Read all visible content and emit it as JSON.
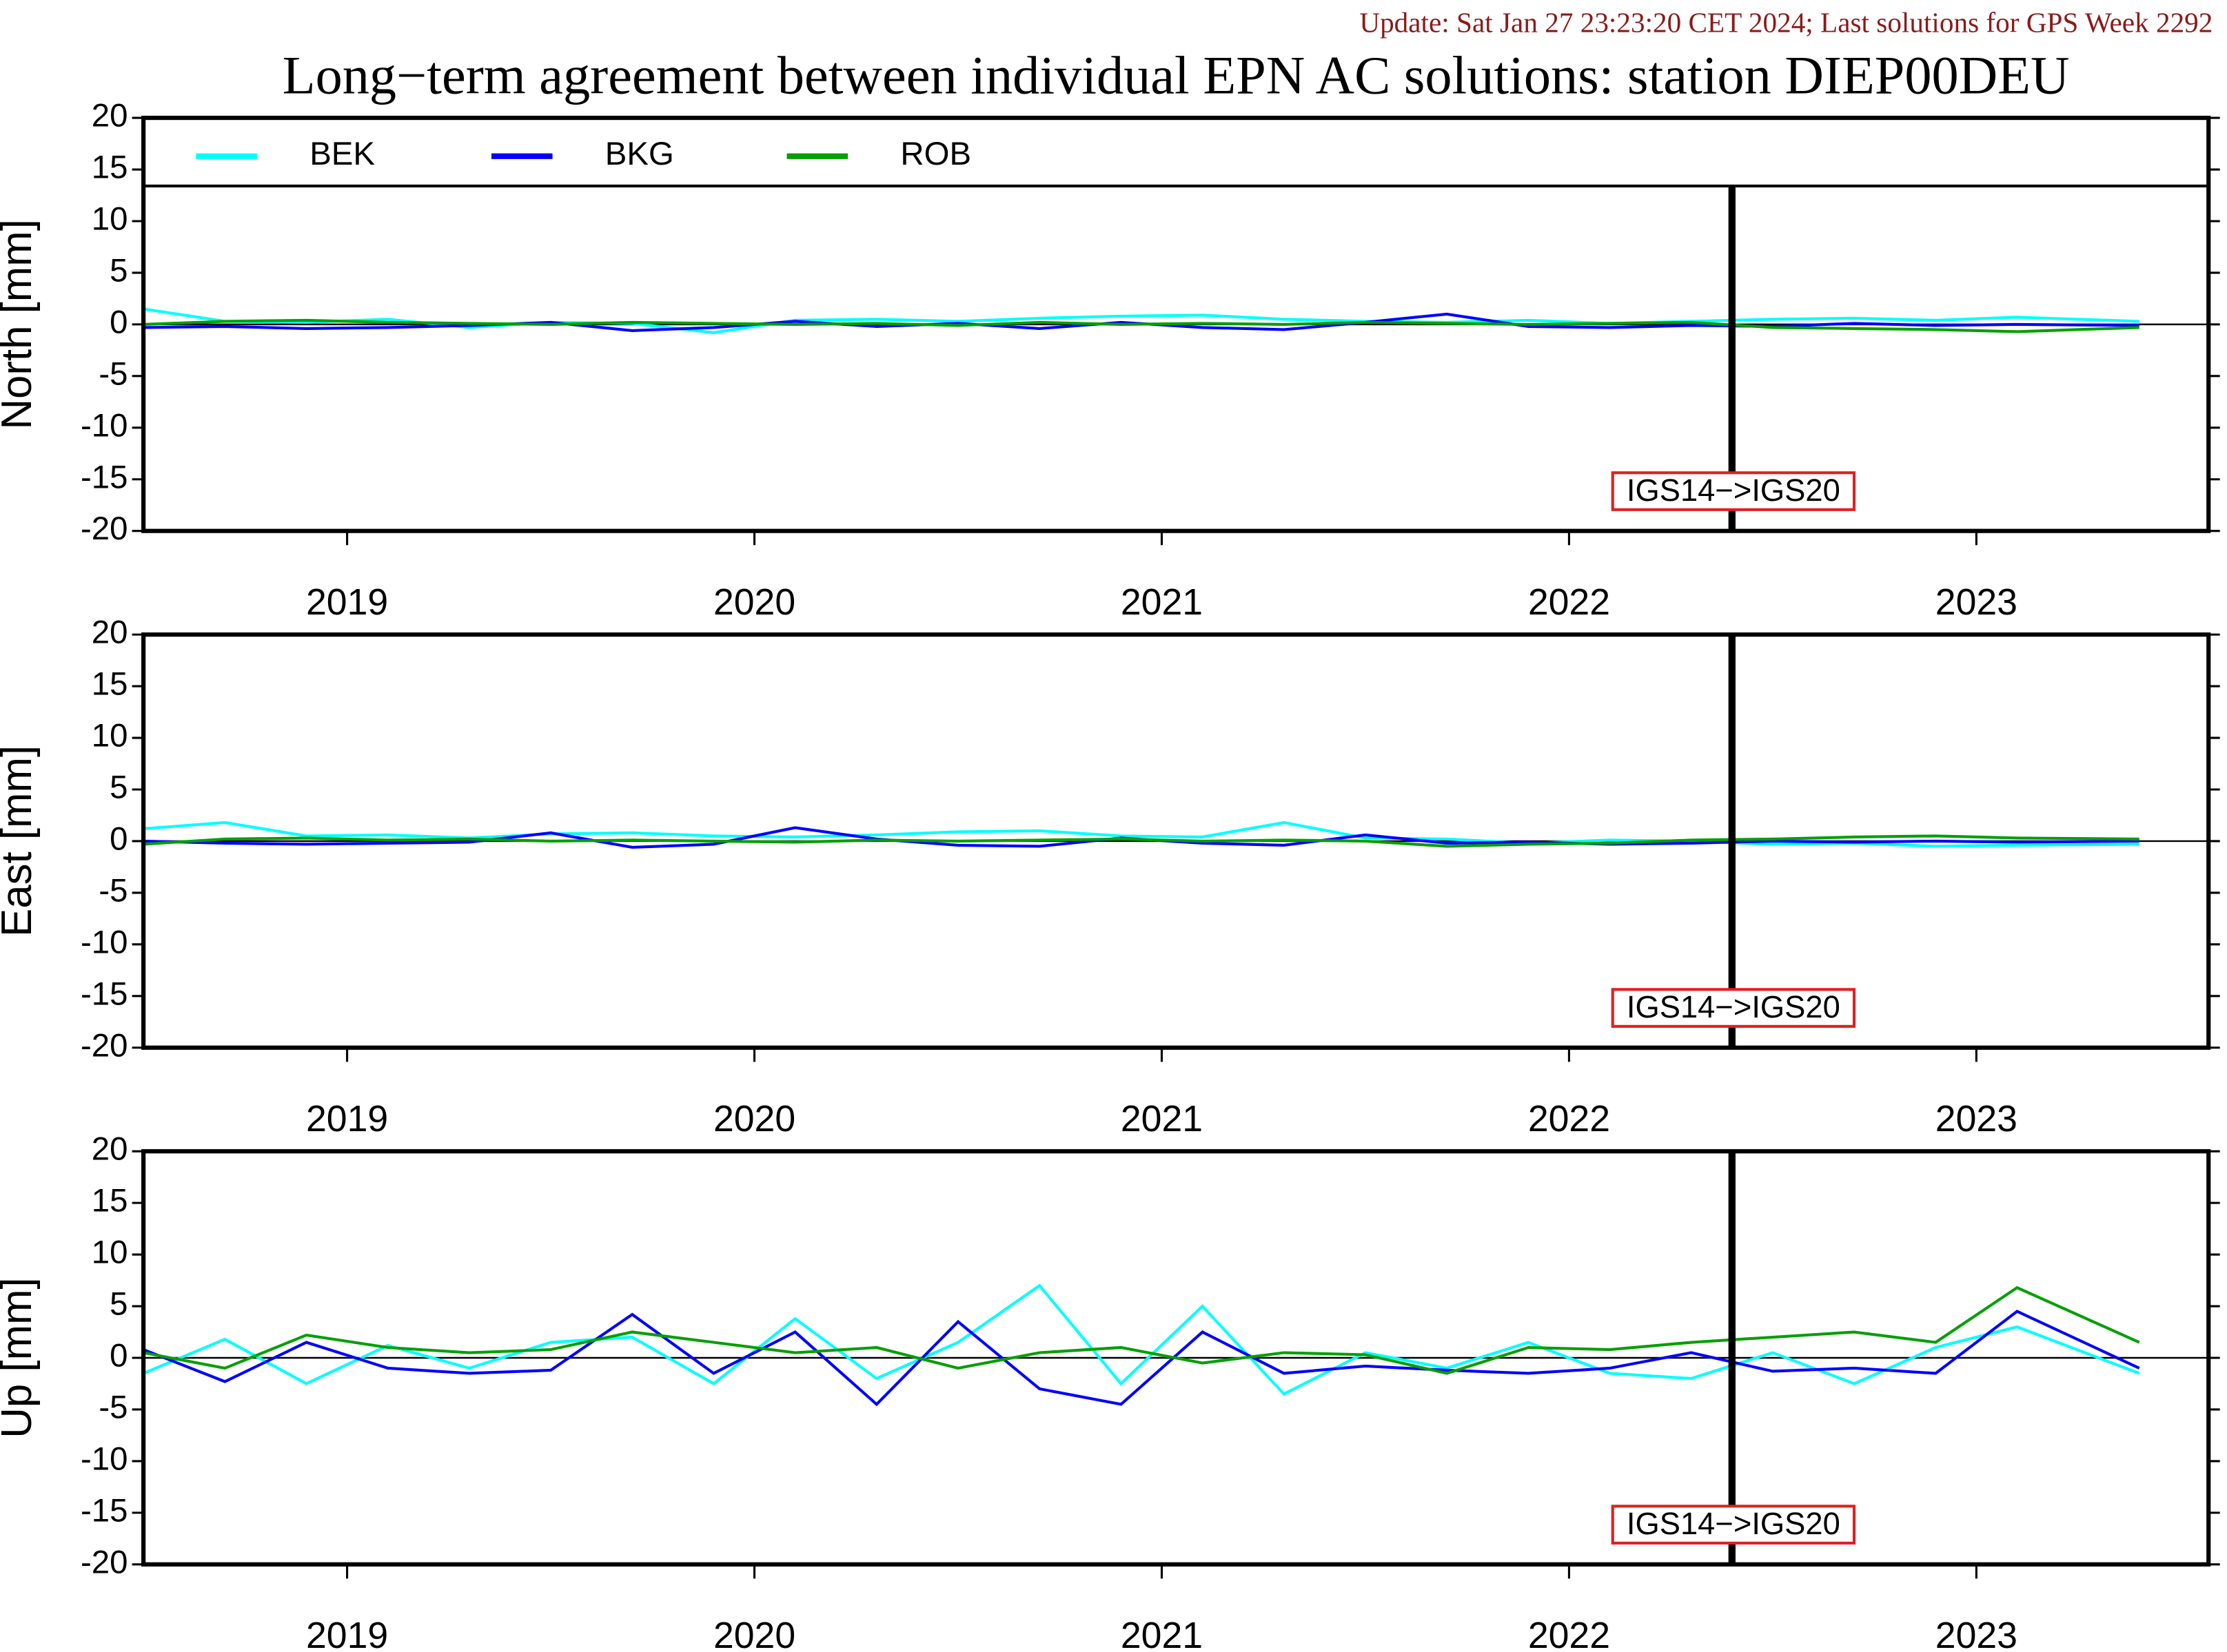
{
  "update_note": "Update: Sat Jan 27 23:23:20 CET 2024; Last solutions for GPS Week 2292",
  "title": "Long−term agreement between individual EPN AC solutions: station DIEP00DEU",
  "chart_data": [
    {
      "type": "line",
      "ylabel": "North [mm]",
      "ylim": [
        -20,
        20
      ],
      "yticks": [
        -20,
        -15,
        -10,
        -5,
        0,
        5,
        10,
        15,
        20
      ],
      "xlim": [
        2019.0,
        2024.07
      ],
      "xticks": [
        {
          "value": 2019.5,
          "label": "2019"
        },
        {
          "value": 2020.5,
          "label": "2020"
        },
        {
          "value": 2021.5,
          "label": "2021"
        },
        {
          "value": 2022.5,
          "label": "2022"
        },
        {
          "value": 2023.5,
          "label": "2023"
        }
      ],
      "event_x": 2022.9,
      "event_label": "IGS14−>IGS20",
      "x": [
        2019.0,
        2019.2,
        2019.4,
        2019.6,
        2019.8,
        2020.0,
        2020.2,
        2020.4,
        2020.6,
        2020.8,
        2021.0,
        2021.2,
        2021.4,
        2021.6,
        2021.8,
        2022.0,
        2022.2,
        2022.4,
        2022.6,
        2022.8,
        2023.0,
        2023.2,
        2023.4,
        2023.6,
        2023.9
      ],
      "series": [
        {
          "name": "BEK",
          "color": "#00ffff",
          "values": [
            1.5,
            0.3,
            0.2,
            0.5,
            -0.3,
            0.2,
            0.1,
            -0.8,
            0.4,
            0.5,
            0.3,
            0.6,
            0.8,
            0.9,
            0.5,
            0.3,
            0.2,
            0.4,
            0.1,
            0.3,
            0.5,
            0.6,
            0.4,
            0.7,
            0.3
          ]
        },
        {
          "name": "BKG",
          "color": "#0000ff",
          "values": [
            -0.3,
            -0.2,
            -0.4,
            -0.3,
            -0.1,
            0.2,
            -0.6,
            -0.3,
            0.3,
            -0.2,
            0.1,
            -0.4,
            0.2,
            -0.3,
            -0.5,
            0.2,
            1.0,
            -0.2,
            -0.3,
            -0.1,
            -0.2,
            0.1,
            -0.1,
            0.0,
            -0.1
          ]
        },
        {
          "name": "ROB",
          "color": "#00a000",
          "values": [
            0.0,
            0.3,
            0.4,
            0.2,
            0.1,
            0.0,
            0.2,
            0.1,
            0.0,
            0.1,
            -0.1,
            0.2,
            0.0,
            0.1,
            0.0,
            0.2,
            0.1,
            0.0,
            0.1,
            0.2,
            -0.3,
            -0.4,
            -0.5,
            -0.7,
            -0.3
          ]
        }
      ]
    },
    {
      "type": "line",
      "ylabel": "East [mm]",
      "ylim": [
        -20,
        20
      ],
      "yticks": [
        -20,
        -15,
        -10,
        -5,
        0,
        5,
        10,
        15,
        20
      ],
      "xlim": [
        2019.0,
        2024.07
      ],
      "xticks": [
        {
          "value": 2019.5,
          "label": "2019"
        },
        {
          "value": 2020.5,
          "label": "2020"
        },
        {
          "value": 2021.5,
          "label": "2021"
        },
        {
          "value": 2022.5,
          "label": "2022"
        },
        {
          "value": 2023.5,
          "label": "2023"
        }
      ],
      "event_x": 2022.9,
      "event_label": "IGS14−>IGS20",
      "x": [
        2019.0,
        2019.2,
        2019.4,
        2019.6,
        2019.8,
        2020.0,
        2020.2,
        2020.4,
        2020.6,
        2020.8,
        2021.0,
        2021.2,
        2021.4,
        2021.6,
        2021.8,
        2022.0,
        2022.2,
        2022.4,
        2022.6,
        2022.8,
        2023.0,
        2023.2,
        2023.4,
        2023.6,
        2023.9
      ],
      "series": [
        {
          "color": "#00ffff",
          "values": [
            1.2,
            1.8,
            0.5,
            0.6,
            0.3,
            0.7,
            0.8,
            0.5,
            0.4,
            0.6,
            0.9,
            1.0,
            0.5,
            0.4,
            1.8,
            0.3,
            0.2,
            -0.2,
            0.1,
            0.0,
            -0.3,
            -0.2,
            -0.5,
            -0.4,
            -0.3
          ]
        },
        {
          "color": "#0000ff",
          "values": [
            0.0,
            -0.2,
            -0.3,
            -0.2,
            -0.1,
            0.8,
            -0.6,
            -0.3,
            1.3,
            0.2,
            -0.4,
            -0.5,
            0.3,
            -0.2,
            -0.4,
            0.6,
            -0.2,
            -0.1,
            -0.3,
            -0.2,
            0.0,
            -0.1,
            0.0,
            -0.1,
            0.0
          ]
        },
        {
          "color": "#00a000",
          "values": [
            -0.3,
            0.2,
            0.3,
            0.1,
            0.2,
            0.0,
            0.1,
            0.0,
            -0.1,
            0.1,
            0.0,
            0.1,
            0.2,
            0.0,
            0.1,
            0.0,
            -0.5,
            -0.3,
            -0.2,
            0.1,
            0.2,
            0.4,
            0.5,
            0.3,
            0.2
          ]
        }
      ]
    },
    {
      "type": "line",
      "ylabel": "Up [mm]",
      "ylim": [
        -20,
        20
      ],
      "yticks": [
        -20,
        -15,
        -10,
        -5,
        0,
        5,
        10,
        15,
        20
      ],
      "xlim": [
        2019.0,
        2024.07
      ],
      "xticks": [
        {
          "value": 2019.5,
          "label": "2019"
        },
        {
          "value": 2020.5,
          "label": "2020"
        },
        {
          "value": 2021.5,
          "label": "2021"
        },
        {
          "value": 2022.5,
          "label": "2022"
        },
        {
          "value": 2023.5,
          "label": "2023"
        }
      ],
      "event_x": 2022.9,
      "event_label": "IGS14−>IGS20",
      "x": [
        2019.0,
        2019.2,
        2019.4,
        2019.6,
        2019.8,
        2020.0,
        2020.2,
        2020.4,
        2020.6,
        2020.8,
        2021.0,
        2021.2,
        2021.4,
        2021.6,
        2021.8,
        2022.0,
        2022.2,
        2022.4,
        2022.6,
        2022.8,
        2023.0,
        2023.2,
        2023.4,
        2023.6,
        2023.9
      ],
      "series": [
        {
          "color": "#00ffff",
          "values": [
            -1.5,
            1.8,
            -2.5,
            1.2,
            -1.0,
            1.5,
            2.0,
            -2.5,
            3.8,
            -2.0,
            1.5,
            7.0,
            -2.5,
            5.0,
            -3.5,
            0.5,
            -1.0,
            1.5,
            -1.5,
            -2.0,
            0.5,
            -2.5,
            1.0,
            3.0,
            -1.5
          ]
        },
        {
          "color": "#0000ff",
          "values": [
            0.8,
            -2.3,
            1.5,
            -1.0,
            -1.5,
            -1.2,
            4.2,
            -1.5,
            2.5,
            -4.5,
            3.5,
            -3.0,
            -4.5,
            2.5,
            -1.5,
            -0.8,
            -1.2,
            -1.5,
            -1.0,
            0.5,
            -1.3,
            -1.0,
            -1.5,
            4.5,
            -1.0
          ]
        },
        {
          "color": "#00a000",
          "values": [
            0.5,
            -1.0,
            2.2,
            1.0,
            0.5,
            0.8,
            2.5,
            1.5,
            0.5,
            1.0,
            -1.0,
            0.5,
            1.0,
            -0.5,
            0.5,
            0.3,
            -1.5,
            1.0,
            0.8,
            1.5,
            2.0,
            2.5,
            1.5,
            6.8,
            1.5
          ]
        }
      ]
    }
  ]
}
